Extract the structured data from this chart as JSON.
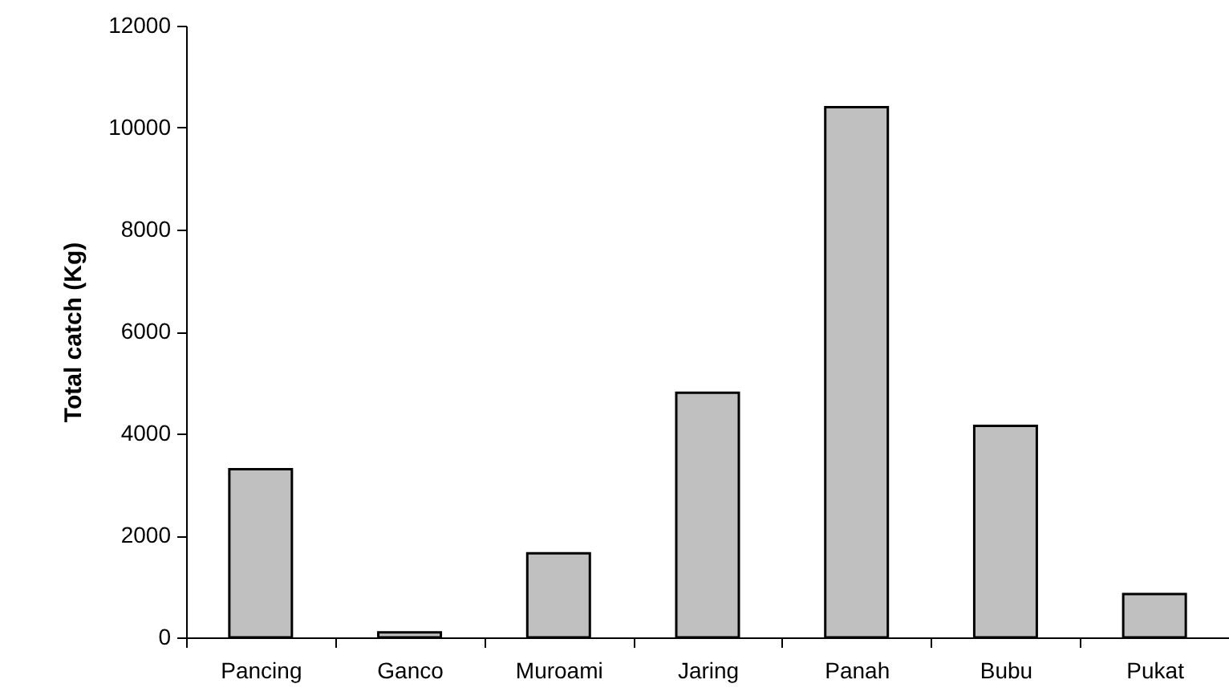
{
  "chart_data": {
    "type": "bar",
    "ylabel": "Total catch (Kg)",
    "categories": [
      "Pancing",
      "Ganco",
      "Muroami",
      "Jaring",
      "Panah",
      "Bubu",
      "Pukat"
    ],
    "values": [
      3300,
      100,
      1650,
      4800,
      10400,
      4150,
      850
    ],
    "color": "#c0c0c0",
    "ylim": [
      0,
      12000
    ],
    "yticks": [
      0,
      2000,
      4000,
      6000,
      8000,
      10000,
      12000
    ],
    "grid": false
  }
}
